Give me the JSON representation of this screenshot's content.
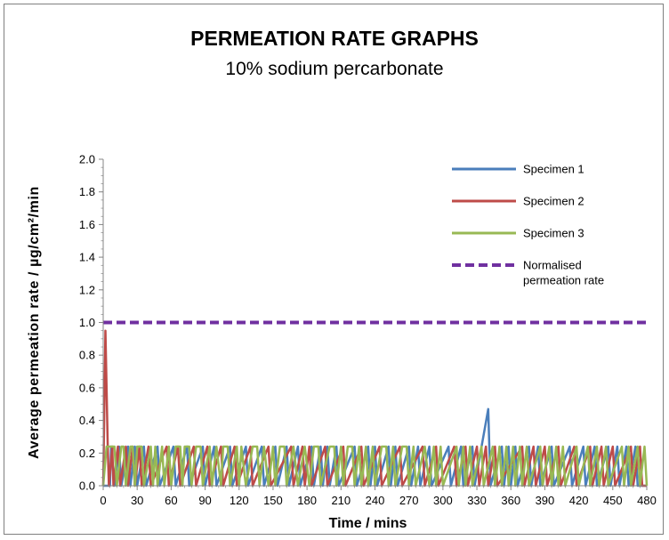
{
  "header": {
    "title": "PERMEATION RATE GRAPHS",
    "subtitle": "10% sodium percarbonate"
  },
  "chart_data": {
    "type": "line",
    "title": "PERMEATION RATE GRAPHS",
    "subtitle": "10% sodium percarbonate",
    "xlabel": "Time / mins",
    "ylabel": "Average permeation rate / µg/cm²/min",
    "xlim": [
      0,
      480
    ],
    "ylim": [
      0,
      2.0
    ],
    "x_ticks": [
      0,
      30,
      60,
      90,
      120,
      150,
      180,
      210,
      240,
      270,
      300,
      330,
      360,
      390,
      420,
      450,
      480
    ],
    "y_ticks": [
      "0.0",
      "0.2",
      "0.4",
      "0.6",
      "0.8",
      "1.0",
      "1.2",
      "1.4",
      "1.6",
      "1.8",
      "2.0"
    ],
    "grid": false,
    "legend_position": "top-right",
    "series": [
      {
        "name": "Specimen 1",
        "color": "#4a7ebb",
        "style": "solid",
        "points": [
          [
            0,
            0
          ],
          [
            6,
            0
          ],
          [
            7,
            0.24
          ],
          [
            10,
            0
          ],
          [
            14,
            0.24
          ],
          [
            16,
            0
          ],
          [
            22,
            0.24
          ],
          [
            24,
            0
          ],
          [
            28,
            0.24
          ],
          [
            30,
            0
          ],
          [
            36,
            0.24
          ],
          [
            38,
            0
          ],
          [
            48,
            0.24
          ],
          [
            50,
            0
          ],
          [
            62,
            0.24
          ],
          [
            64,
            0
          ],
          [
            74,
            0.24
          ],
          [
            76,
            0
          ],
          [
            88,
            0.24
          ],
          [
            90,
            0
          ],
          [
            98,
            0.24
          ],
          [
            100,
            0
          ],
          [
            112,
            0.24
          ],
          [
            114,
            0
          ],
          [
            126,
            0.24
          ],
          [
            128,
            0
          ],
          [
            140,
            0.24
          ],
          [
            142,
            0
          ],
          [
            152,
            0.24
          ],
          [
            154,
            0
          ],
          [
            162,
            0.24
          ],
          [
            164,
            0
          ],
          [
            172,
            0.24
          ],
          [
            174,
            0
          ],
          [
            184,
            0.24
          ],
          [
            186,
            0
          ],
          [
            192,
            0.24
          ],
          [
            194,
            0
          ],
          [
            198,
            0.24
          ],
          [
            200,
            0
          ],
          [
            206,
            0.24
          ],
          [
            208,
            0
          ],
          [
            222,
            0.24
          ],
          [
            224,
            0
          ],
          [
            234,
            0.24
          ],
          [
            236,
            0
          ],
          [
            240,
            0.24
          ],
          [
            242,
            0
          ],
          [
            252,
            0.24
          ],
          [
            254,
            0
          ],
          [
            258,
            0.24
          ],
          [
            260,
            0
          ],
          [
            270,
            0.24
          ],
          [
            272,
            0
          ],
          [
            278,
            0.24
          ],
          [
            280,
            0
          ],
          [
            288,
            0.24
          ],
          [
            290,
            0
          ],
          [
            305,
            0.24
          ],
          [
            307,
            0
          ],
          [
            316,
            0.24
          ],
          [
            318,
            0
          ],
          [
            326,
            0.24
          ],
          [
            328,
            0
          ],
          [
            340,
            0.47
          ],
          [
            342,
            0
          ],
          [
            352,
            0.24
          ],
          [
            354,
            0
          ],
          [
            358,
            0.24
          ],
          [
            360,
            0
          ],
          [
            364,
            0.24
          ],
          [
            366,
            0
          ],
          [
            376,
            0.24
          ],
          [
            378,
            0
          ],
          [
            384,
            0.24
          ],
          [
            386,
            0
          ],
          [
            396,
            0.24
          ],
          [
            398,
            0
          ],
          [
            412,
            0.24
          ],
          [
            414,
            0
          ],
          [
            424,
            0.24
          ],
          [
            426,
            0
          ],
          [
            434,
            0.24
          ],
          [
            436,
            0
          ],
          [
            446,
            0.24
          ],
          [
            448,
            0
          ],
          [
            454,
            0.24
          ],
          [
            456,
            0
          ],
          [
            462,
            0.24
          ],
          [
            464,
            0
          ],
          [
            470,
            0.24
          ],
          [
            472,
            0
          ],
          [
            480,
            0
          ]
        ]
      },
      {
        "name": "Specimen 2",
        "color": "#be4b48",
        "style": "solid",
        "points": [
          [
            0,
            0
          ],
          [
            2,
            0.95
          ],
          [
            4,
            0.24
          ],
          [
            5,
            0
          ],
          [
            8,
            0.24
          ],
          [
            9,
            0
          ],
          [
            13,
            0.24
          ],
          [
            15,
            0
          ],
          [
            20,
            0.24
          ],
          [
            22,
            0
          ],
          [
            26,
            0.24
          ],
          [
            28,
            0
          ],
          [
            32,
            0.24
          ],
          [
            34,
            0
          ],
          [
            40,
            0.24
          ],
          [
            42,
            0
          ],
          [
            56,
            0.24
          ],
          [
            58,
            0
          ],
          [
            66,
            0.24
          ],
          [
            68,
            0
          ],
          [
            80,
            0.24
          ],
          [
            82,
            0
          ],
          [
            92,
            0.24
          ],
          [
            94,
            0
          ],
          [
            104,
            0.24
          ],
          [
            106,
            0
          ],
          [
            116,
            0.24
          ],
          [
            118,
            0
          ],
          [
            130,
            0.24
          ],
          [
            132,
            0
          ],
          [
            146,
            0.24
          ],
          [
            148,
            0
          ],
          [
            166,
            0.24
          ],
          [
            168,
            0
          ],
          [
            176,
            0.24
          ],
          [
            178,
            0
          ],
          [
            182,
            0.24
          ],
          [
            184,
            0
          ],
          [
            196,
            0.24
          ],
          [
            198,
            0
          ],
          [
            212,
            0.24
          ],
          [
            214,
            0
          ],
          [
            228,
            0.24
          ],
          [
            230,
            0
          ],
          [
            244,
            0.24
          ],
          [
            246,
            0
          ],
          [
            262,
            0.24
          ],
          [
            264,
            0
          ],
          [
            282,
            0.24
          ],
          [
            284,
            0
          ],
          [
            294,
            0.24
          ],
          [
            296,
            0
          ],
          [
            310,
            0.24
          ],
          [
            312,
            0
          ],
          [
            320,
            0.24
          ],
          [
            322,
            0
          ],
          [
            330,
            0.24
          ],
          [
            332,
            0
          ],
          [
            338,
            0.24
          ],
          [
            340,
            0
          ],
          [
            346,
            0.24
          ],
          [
            348,
            0
          ],
          [
            370,
            0.24
          ],
          [
            372,
            0
          ],
          [
            380,
            0.24
          ],
          [
            382,
            0
          ],
          [
            390,
            0.24
          ],
          [
            392,
            0
          ],
          [
            402,
            0.24
          ],
          [
            404,
            0
          ],
          [
            416,
            0.24
          ],
          [
            418,
            0
          ],
          [
            430,
            0.24
          ],
          [
            432,
            0
          ],
          [
            440,
            0.24
          ],
          [
            442,
            0
          ],
          [
            450,
            0.24
          ],
          [
            452,
            0
          ],
          [
            466,
            0.24
          ],
          [
            468,
            0
          ],
          [
            474,
            0.24
          ],
          [
            476,
            0
          ],
          [
            480,
            0
          ]
        ]
      },
      {
        "name": "Specimen 3",
        "color": "#98b954",
        "style": "solid",
        "points": [
          [
            0,
            0
          ],
          [
            3,
            0.24
          ],
          [
            6,
            0.24
          ],
          [
            8,
            0.24
          ],
          [
            10,
            0.24
          ],
          [
            12,
            0
          ],
          [
            16,
            0.24
          ],
          [
            18,
            0.24
          ],
          [
            20,
            0
          ],
          [
            24,
            0.24
          ],
          [
            26,
            0.24
          ],
          [
            28,
            0
          ],
          [
            30,
            0.24
          ],
          [
            34,
            0.24
          ],
          [
            36,
            0
          ],
          [
            42,
            0.24
          ],
          [
            44,
            0
          ],
          [
            46,
            0.24
          ],
          [
            48,
            0
          ],
          [
            52,
            0.24
          ],
          [
            54,
            0
          ],
          [
            58,
            0.24
          ],
          [
            60,
            0
          ],
          [
            64,
            0.24
          ],
          [
            68,
            0.24
          ],
          [
            70,
            0
          ],
          [
            72,
            0.24
          ],
          [
            76,
            0.24
          ],
          [
            78,
            0
          ],
          [
            82,
            0.24
          ],
          [
            86,
            0.24
          ],
          [
            88,
            0
          ],
          [
            94,
            0.24
          ],
          [
            96,
            0
          ],
          [
            100,
            0.24
          ],
          [
            104,
            0
          ],
          [
            106,
            0.24
          ],
          [
            110,
            0.24
          ],
          [
            112,
            0
          ],
          [
            118,
            0.24
          ],
          [
            120,
            0
          ],
          [
            122,
            0.24
          ],
          [
            126,
            0
          ],
          [
            132,
            0.24
          ],
          [
            136,
            0.24
          ],
          [
            138,
            0
          ],
          [
            142,
            0.24
          ],
          [
            146,
            0
          ],
          [
            150,
            0.24
          ],
          [
            152,
            0
          ],
          [
            156,
            0.24
          ],
          [
            160,
            0.24
          ],
          [
            162,
            0
          ],
          [
            168,
            0.24
          ],
          [
            172,
            0
          ],
          [
            178,
            0.24
          ],
          [
            182,
            0
          ],
          [
            186,
            0.24
          ],
          [
            190,
            0.24
          ],
          [
            192,
            0
          ],
          [
            200,
            0.24
          ],
          [
            204,
            0.24
          ],
          [
            206,
            0
          ],
          [
            210,
            0.24
          ],
          [
            212,
            0
          ],
          [
            216,
            0.24
          ],
          [
            220,
            0.24
          ],
          [
            222,
            0
          ],
          [
            226,
            0.24
          ],
          [
            228,
            0
          ],
          [
            232,
            0.24
          ],
          [
            234,
            0
          ],
          [
            238,
            0.24
          ],
          [
            240,
            0
          ],
          [
            246,
            0.24
          ],
          [
            250,
            0.24
          ],
          [
            252,
            0
          ],
          [
            256,
            0.24
          ],
          [
            258,
            0
          ],
          [
            264,
            0.24
          ],
          [
            268,
            0.24
          ],
          [
            270,
            0
          ],
          [
            274,
            0.24
          ],
          [
            276,
            0
          ],
          [
            284,
            0.24
          ],
          [
            288,
            0
          ],
          [
            292,
            0.24
          ],
          [
            294,
            0
          ],
          [
            298,
            0.24
          ],
          [
            300,
            0
          ],
          [
            312,
            0.24
          ],
          [
            314,
            0
          ],
          [
            318,
            0.24
          ],
          [
            320,
            0
          ],
          [
            324,
            0.24
          ],
          [
            326,
            0
          ],
          [
            334,
            0.24
          ],
          [
            336,
            0
          ],
          [
            344,
            0.24
          ],
          [
            346,
            0
          ],
          [
            350,
            0.24
          ],
          [
            352,
            0
          ],
          [
            356,
            0.24
          ],
          [
            358,
            0
          ],
          [
            362,
            0.24
          ],
          [
            364,
            0
          ],
          [
            368,
            0.24
          ],
          [
            370,
            0
          ],
          [
            374,
            0.24
          ],
          [
            376,
            0
          ],
          [
            386,
            0.24
          ],
          [
            388,
            0
          ],
          [
            394,
            0.24
          ],
          [
            396,
            0
          ],
          [
            400,
            0.24
          ],
          [
            402,
            0
          ],
          [
            406,
            0.24
          ],
          [
            408,
            0
          ],
          [
            418,
            0.24
          ],
          [
            420,
            0
          ],
          [
            428,
            0.24
          ],
          [
            430,
            0
          ],
          [
            436,
            0.24
          ],
          [
            438,
            0
          ],
          [
            444,
            0.24
          ],
          [
            446,
            0
          ],
          [
            458,
            0.24
          ],
          [
            460,
            0
          ],
          [
            464,
            0.24
          ],
          [
            466,
            0
          ],
          [
            472,
            0.24
          ],
          [
            474,
            0
          ],
          [
            478,
            0.24
          ],
          [
            480,
            0
          ]
        ]
      },
      {
        "name": "Normalised permeation rate",
        "legend_lines": [
          "Normalised",
          "permeation rate"
        ],
        "color": "#7030a0",
        "style": "dashed",
        "points": [
          [
            0,
            1.0
          ],
          [
            480,
            1.0
          ]
        ]
      }
    ]
  }
}
